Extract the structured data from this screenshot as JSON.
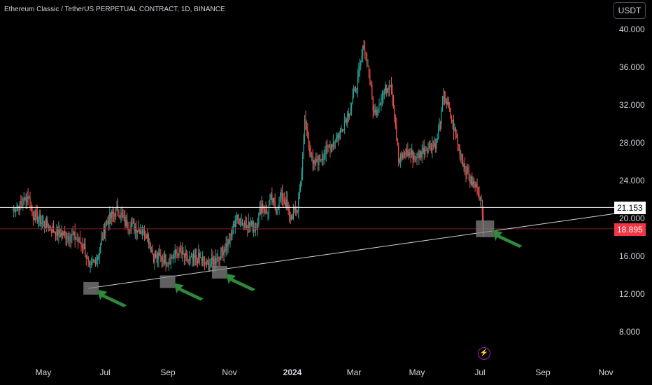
{
  "header": {
    "title": "Ethereum Classic / TetherUS PERPETUAL CONTRACT, 1D, BINANCE",
    "currency": "USDT"
  },
  "colors": {
    "up": "#26a69a",
    "down": "#ef5350",
    "background": "#000000",
    "text": "#d1d4dc",
    "trendline": "#d1d4dc",
    "arrow": "#2e8b3d",
    "highlight_box": "#808080"
  },
  "price_axis": {
    "ticks": [
      "40.000",
      "36.000",
      "32.000",
      "28.000",
      "24.000",
      "20.000",
      "16.000",
      "12.000",
      "8.000"
    ],
    "tick_values": [
      40,
      36,
      32,
      28,
      24,
      20,
      16,
      12,
      8
    ]
  },
  "time_axis": {
    "ticks": [
      "May",
      "Jul",
      "Sep",
      "Nov",
      "2024",
      "Mar",
      "May",
      "Jul",
      "Sep",
      "Nov"
    ]
  },
  "price_tags": {
    "horizontal_level": "21.153",
    "last_price": "18.895"
  },
  "chart_data": {
    "type": "candlestick",
    "title": "Ethereum Classic / TetherUS PERPETUAL CONTRACT, 1D, BINANCE",
    "ylim": [
      5,
      42
    ],
    "x_range": [
      "2023-04-01",
      "2024-11-30"
    ],
    "close_path": [
      [
        "2023-04-01",
        21.0
      ],
      [
        "2023-04-10",
        21.5
      ],
      [
        "2023-04-16",
        22.5
      ],
      [
        "2023-04-20",
        20.5
      ],
      [
        "2023-05-01",
        19.5
      ],
      [
        "2023-05-15",
        18.5
      ],
      [
        "2023-06-01",
        18.0
      ],
      [
        "2023-06-10",
        17.0
      ],
      [
        "2023-06-15",
        14.5
      ],
      [
        "2023-06-20",
        15.5
      ],
      [
        "2023-06-25",
        16.5
      ],
      [
        "2023-07-01",
        19.5
      ],
      [
        "2023-07-05",
        20.0
      ],
      [
        "2023-07-13",
        21.0
      ],
      [
        "2023-07-20",
        19.5
      ],
      [
        "2023-08-01",
        19.0
      ],
      [
        "2023-08-10",
        18.5
      ],
      [
        "2023-08-17",
        16.0
      ],
      [
        "2023-08-25",
        15.8
      ],
      [
        "2023-09-01",
        15.6
      ],
      [
        "2023-09-10",
        16.5
      ],
      [
        "2023-09-20",
        15.5
      ],
      [
        "2023-10-01",
        15.8
      ],
      [
        "2023-10-10",
        15.0
      ],
      [
        "2023-10-20",
        16.0
      ],
      [
        "2023-11-01",
        18.0
      ],
      [
        "2023-11-05",
        20.0
      ],
      [
        "2023-11-15",
        19.5
      ],
      [
        "2023-11-25",
        19.0
      ],
      [
        "2023-12-01",
        21.5
      ],
      [
        "2023-12-06",
        20.5
      ],
      [
        "2023-12-10",
        22.0
      ],
      [
        "2023-12-15",
        21.0
      ],
      [
        "2023-12-20",
        22.5
      ],
      [
        "2023-12-25",
        21.5
      ],
      [
        "2023-12-28",
        20.0
      ],
      [
        "2024-01-05",
        21.0
      ],
      [
        "2024-01-10",
        26.0
      ],
      [
        "2024-01-12",
        30.5
      ],
      [
        "2024-01-20",
        25.5
      ],
      [
        "2024-02-01",
        27.0
      ],
      [
        "2024-02-15",
        29.0
      ],
      [
        "2024-02-25",
        31.5
      ],
      [
        "2024-03-05",
        35.0
      ],
      [
        "2024-03-10",
        38.5
      ],
      [
        "2024-03-14",
        36.0
      ],
      [
        "2024-03-20",
        31.0
      ],
      [
        "2024-03-28",
        33.0
      ],
      [
        "2024-04-05",
        34.5
      ],
      [
        "2024-04-10",
        30.0
      ],
      [
        "2024-04-13",
        26.0
      ],
      [
        "2024-04-20",
        27.0
      ],
      [
        "2024-05-01",
        26.5
      ],
      [
        "2024-05-10",
        27.5
      ],
      [
        "2024-05-20",
        28.0
      ],
      [
        "2024-05-28",
        33.0
      ],
      [
        "2024-06-05",
        30.0
      ],
      [
        "2024-06-15",
        26.0
      ],
      [
        "2024-06-22",
        24.0
      ],
      [
        "2024-06-30",
        23.0
      ],
      [
        "2024-07-03",
        21.5
      ],
      [
        "2024-07-05",
        18.9
      ]
    ],
    "horizontal_line": 21.153,
    "trendline": {
      "from": [
        "2023-06-14",
        12.6
      ],
      "to": [
        "2024-11-30",
        20.8
      ]
    },
    "highlight_boxes": [
      {
        "date": "2023-06-14",
        "price": 12.6
      },
      {
        "date": "2023-08-28",
        "price": 13.3
      },
      {
        "date": "2023-10-18",
        "price": 14.3
      },
      {
        "date": "2024-07-04",
        "price": 18.9
      }
    ]
  }
}
